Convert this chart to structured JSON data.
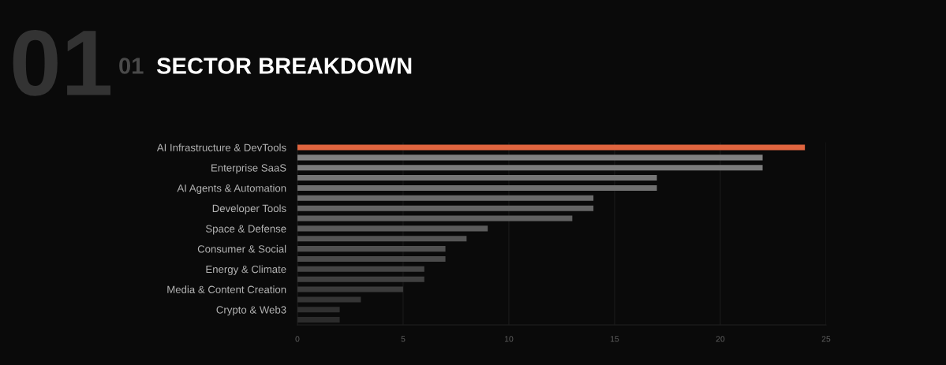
{
  "chart_data": {
    "type": "bar",
    "orientation": "horizontal",
    "title": "SECTOR BREAKDOWN",
    "annotations": [
      "01",
      "01"
    ],
    "categories": [
      "AI Infrastructure & DevTools",
      null,
      "Enterprise SaaS",
      null,
      "AI Agents & Automation",
      null,
      "Developer Tools",
      null,
      "Space & Defense",
      null,
      "Consumer & Social",
      null,
      "Energy & Climate",
      null,
      "Media & Content Creation",
      null,
      "Crypto & Web3",
      null
    ],
    "values": [
      24,
      22,
      22,
      17,
      17,
      14,
      14,
      13,
      9,
      8,
      7,
      7,
      6,
      6,
      5,
      3,
      2,
      2
    ],
    "colors": [
      "#e0653f",
      "#808080",
      "#7b7b7b",
      "#757575",
      "#707070",
      "#6b6b6b",
      "#656565",
      "#606060",
      "#5b5b5b",
      "#555555",
      "#505050",
      "#4b4b4b",
      "#454545",
      "#404040",
      "#3b3b3b",
      "#353535",
      "#303030",
      "#2b2b2b"
    ],
    "xlim": [
      0,
      25
    ],
    "xticks": [
      0,
      5,
      10,
      15,
      20,
      25
    ],
    "grid": "x"
  }
}
